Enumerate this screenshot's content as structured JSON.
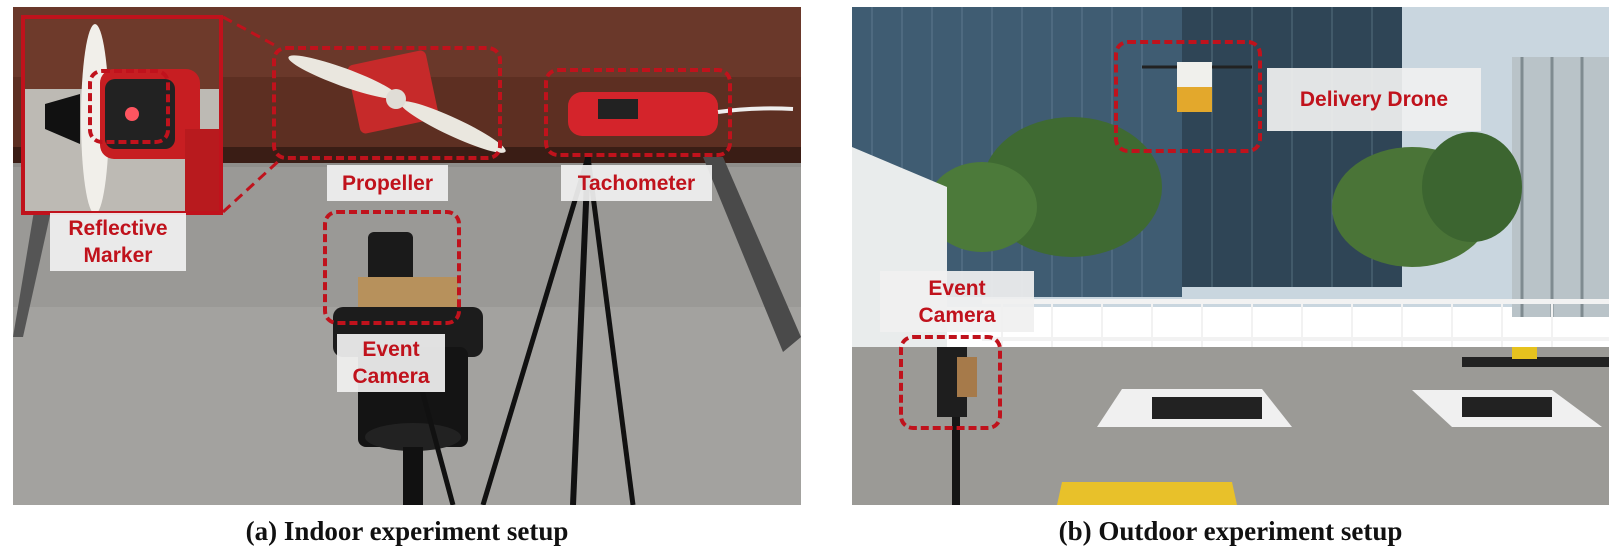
{
  "panel_a": {
    "labels": {
      "propeller": "Propeller",
      "tachometer": "Tachometer",
      "reflective_marker": "Reflective\nMarker",
      "event_camera": "Event\nCamera"
    },
    "caption": "(a) Indoor experiment setup"
  },
  "panel_b": {
    "labels": {
      "delivery_drone": "Delivery Drone",
      "event_camera": "Event\nCamera"
    },
    "caption": "(b) Outdoor experiment setup"
  },
  "colors": {
    "accent": "#c0121c",
    "label_bg": "#f0f0f0"
  }
}
